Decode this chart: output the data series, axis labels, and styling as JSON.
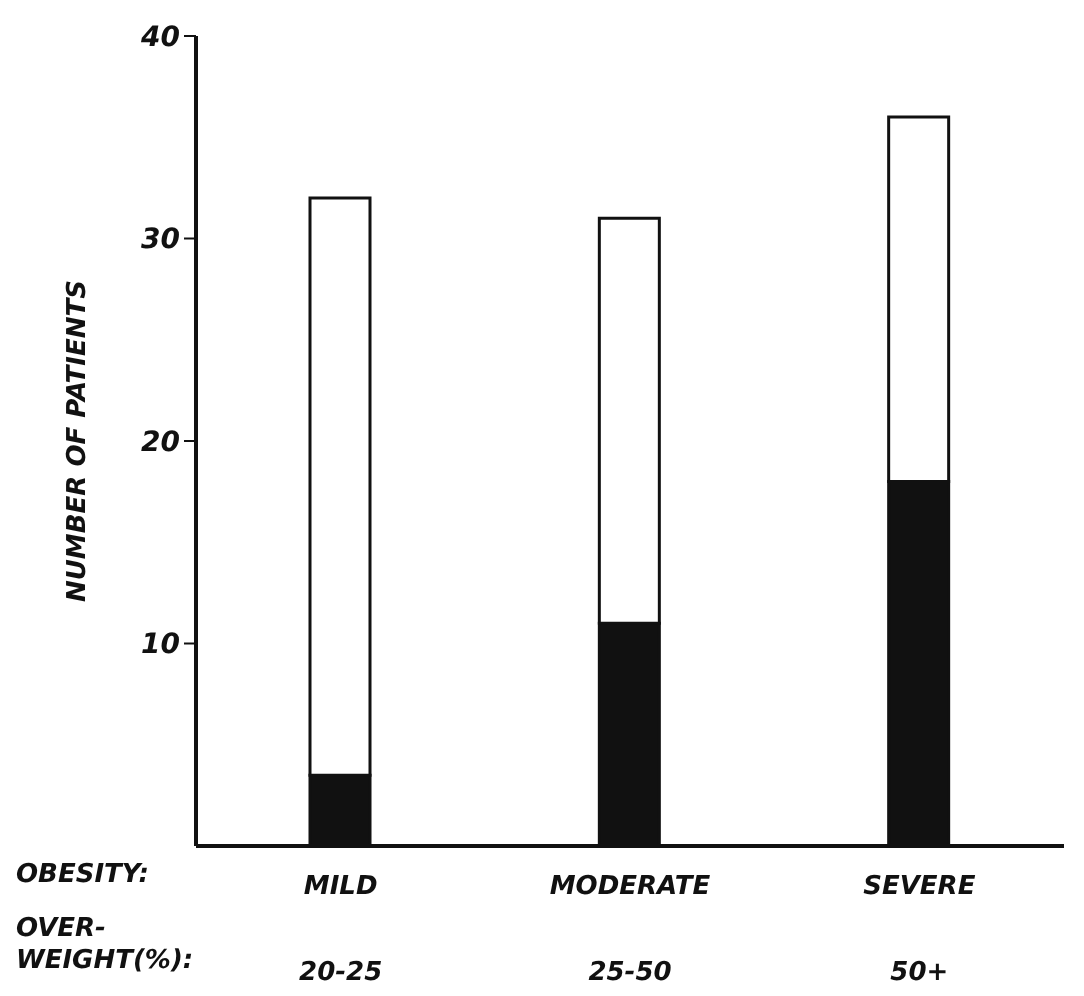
{
  "chart_data": {
    "type": "bar",
    "stacked": true,
    "ylabel": "NUMBER OF PATIENTS",
    "categories": [
      "MILD\n20-25",
      "MODERATE\n25-50",
      "SEVERE\n50+"
    ],
    "series": [
      {
        "color": "#111111",
        "values": [
          3.5,
          11,
          18
        ]
      },
      {
        "color": "#ffffff",
        "values": [
          28.5,
          20,
          18
        ]
      }
    ],
    "ylim": [
      0,
      40
    ],
    "yticks": [
      10,
      20,
      30,
      40
    ],
    "grid": false,
    "legend": false,
    "annotations": [
      "OBESITY:",
      "OVER-\nWEIGHT(%):"
    ]
  }
}
